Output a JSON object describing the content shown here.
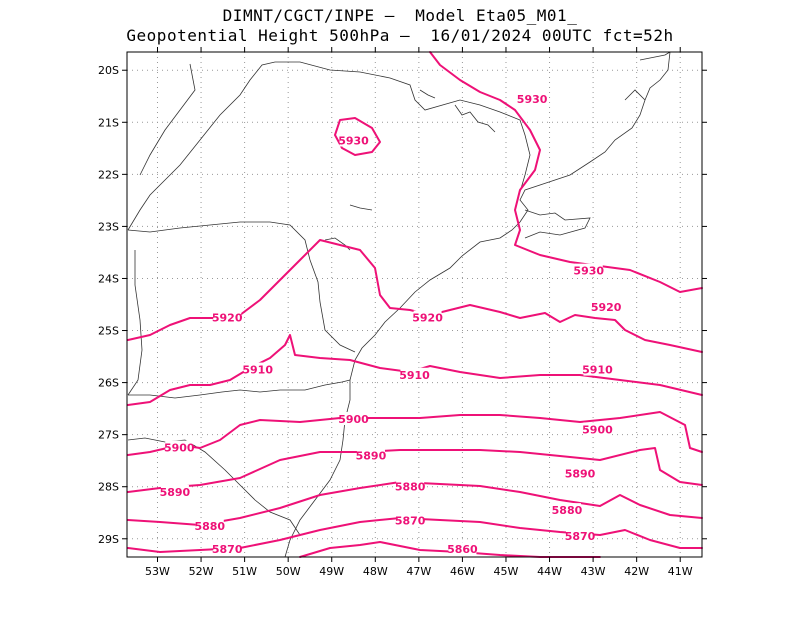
{
  "title_line1": "DIMNT/CGCT/INPE –  Model Eta05_M01_",
  "title_line2": "Geopotential Height 500hPa –  16/01/2024 00UTC fct=52h",
  "colors": {
    "contour": "#ee1177",
    "coast": "#333333",
    "grid": "#999999"
  },
  "map": {
    "lon_range": [
      -53.7,
      -40.5
    ],
    "lat_range": [
      -29.35,
      -19.65
    ],
    "lon_ticks": [
      "53W",
      "52W",
      "51W",
      "50W",
      "49W",
      "48W",
      "47W",
      "46W",
      "45W",
      "44W",
      "43W",
      "42W",
      "41W"
    ],
    "lat_ticks": [
      "20S",
      "21S",
      "22S",
      "23S",
      "24S",
      "25S",
      "26S",
      "27S",
      "28S",
      "29S"
    ],
    "contour_labels": [
      {
        "text": "5930",
        "lon": -44.4,
        "lat": -20.55
      },
      {
        "text": "5930",
        "lon": -48.5,
        "lat": -21.35
      },
      {
        "text": "5930",
        "lon": -43.1,
        "lat": -23.85
      },
      {
        "text": "5920",
        "lon": -51.4,
        "lat": -24.75
      },
      {
        "text": "5920",
        "lon": -46.8,
        "lat": -24.75
      },
      {
        "text": "5920",
        "lon": -42.7,
        "lat": -24.55
      },
      {
        "text": "5910",
        "lon": -50.7,
        "lat": -25.75
      },
      {
        "text": "5910",
        "lon": -47.1,
        "lat": -25.85
      },
      {
        "text": "5910",
        "lon": -42.9,
        "lat": -25.75
      },
      {
        "text": "5900",
        "lon": -52.5,
        "lat": -27.25
      },
      {
        "text": "5900",
        "lon": -48.5,
        "lat": -26.7
      },
      {
        "text": "5900",
        "lon": -42.9,
        "lat": -26.9
      },
      {
        "text": "5890",
        "lon": -52.6,
        "lat": -28.1
      },
      {
        "text": "5890",
        "lon": -48.1,
        "lat": -27.4
      },
      {
        "text": "5890",
        "lon": -43.3,
        "lat": -27.75
      },
      {
        "text": "5880",
        "lon": -51.8,
        "lat": -28.75
      },
      {
        "text": "5880",
        "lon": -47.2,
        "lat": -28.0
      },
      {
        "text": "5880",
        "lon": -43.6,
        "lat": -28.45
      },
      {
        "text": "5870",
        "lon": -51.4,
        "lat": -29.2
      },
      {
        "text": "5870",
        "lon": -47.2,
        "lat": -28.65
      },
      {
        "text": "5870",
        "lon": -43.3,
        "lat": -28.95
      },
      {
        "text": "5860",
        "lon": -46.0,
        "lat": -29.2
      }
    ]
  }
}
